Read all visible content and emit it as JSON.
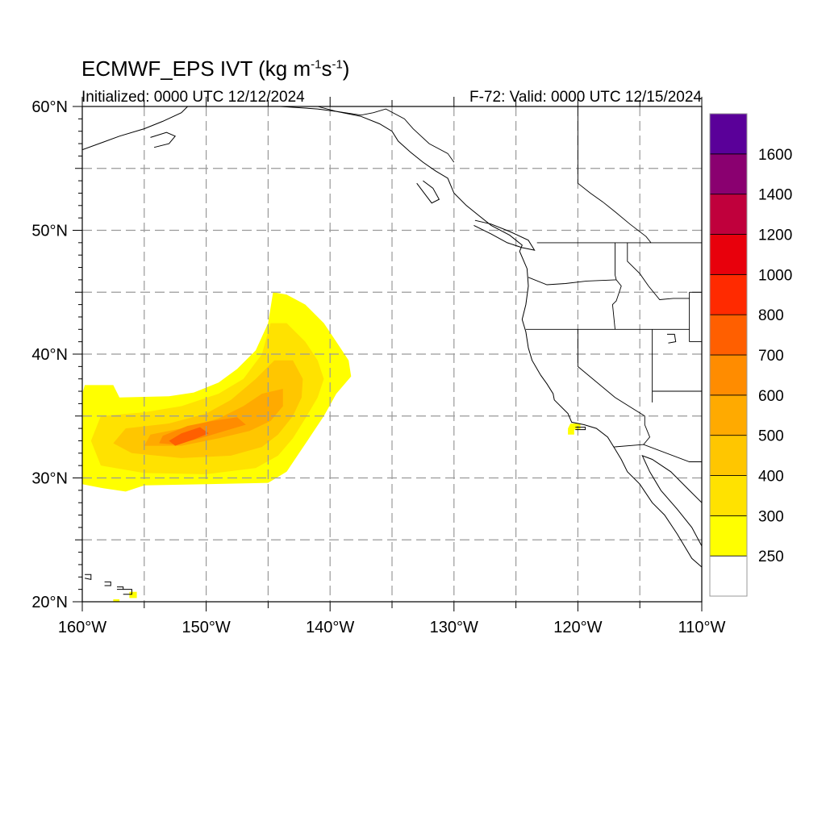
{
  "header": {
    "title_main": "ECMWF_EPS IVT (kg m",
    "title_exp1": "-1",
    "title_mid": "s",
    "title_exp2": "-1",
    "title_end": ")",
    "initialized": "Initialized: 0000 UTC 12/12/2024",
    "valid": "F-72: Valid: 0000 UTC 12/15/2024"
  },
  "map": {
    "lon_range": [
      -160,
      -110
    ],
    "lat_range": [
      20,
      60
    ],
    "lat_labels": [
      {
        "lat": 60,
        "text": "60°N"
      },
      {
        "lat": 50,
        "text": "50°N"
      },
      {
        "lat": 40,
        "text": "40°N"
      },
      {
        "lat": 30,
        "text": "30°N"
      },
      {
        "lat": 20,
        "text": "20°N"
      }
    ],
    "lon_labels": [
      {
        "lon": -160,
        "text": "160°W"
      },
      {
        "lon": -150,
        "text": "150°W"
      },
      {
        "lon": -140,
        "text": "140°W"
      },
      {
        "lon": -130,
        "text": "130°W"
      },
      {
        "lon": -120,
        "text": "120°W"
      },
      {
        "lon": -110,
        "text": "110°W"
      }
    ],
    "grid_lons": [
      -155,
      -150,
      -145,
      -140,
      -135,
      -130,
      -125,
      -120,
      -115
    ],
    "grid_lats": [
      25,
      30,
      35,
      40,
      45,
      50,
      55
    ]
  },
  "colorbar": {
    "colors": [
      "#ffffff",
      "#ffff00",
      "#ffe200",
      "#ffc600",
      "#ffaa00",
      "#ff8c00",
      "#ff5f00",
      "#ff2a00",
      "#e8000c",
      "#c0003c",
      "#8a0070",
      "#5a0099"
    ],
    "labels": [
      "250",
      "300",
      "400",
      "500",
      "600",
      "700",
      "800",
      "1000",
      "1200",
      "1400",
      "1600"
    ]
  },
  "ivt_bands": [
    {
      "level": 1,
      "color": "#ffff00",
      "points": [
        [
          -159.8,
          37.5
        ],
        [
          -157.5,
          37.5
        ],
        [
          -157,
          36.5
        ],
        [
          -153,
          36.6
        ],
        [
          -151,
          36.9
        ],
        [
          -149,
          37.7
        ],
        [
          -147.5,
          38.8
        ],
        [
          -146,
          40.3
        ],
        [
          -145,
          42.5
        ],
        [
          -144.6,
          45.0
        ],
        [
          -143.5,
          44.8
        ],
        [
          -142,
          44.0
        ],
        [
          -140.5,
          42.5
        ],
        [
          -139.5,
          41.0
        ],
        [
          -138.5,
          39.5
        ],
        [
          -138.3,
          38.2
        ],
        [
          -139.5,
          36.8
        ],
        [
          -140.5,
          35.0
        ],
        [
          -141.5,
          33.5
        ],
        [
          -142.5,
          32.0
        ],
        [
          -143.5,
          30.5
        ],
        [
          -145.0,
          29.6
        ],
        [
          -150,
          29.5
        ],
        [
          -155,
          29.4
        ],
        [
          -156.5,
          28.9
        ],
        [
          -158.5,
          29.2
        ],
        [
          -160,
          29.5
        ],
        [
          -160,
          33.0
        ],
        [
          -160,
          36.8
        ]
      ]
    },
    {
      "level": 2,
      "color": "#ffe200",
      "points": [
        [
          -158.5,
          35.0
        ],
        [
          -155,
          35.3
        ],
        [
          -152,
          35.8
        ],
        [
          -149,
          36.8
        ],
        [
          -147,
          38.0
        ],
        [
          -145.5,
          40.0
        ],
        [
          -144.8,
          42.5
        ],
        [
          -143.5,
          42.5
        ],
        [
          -142.0,
          41.0
        ],
        [
          -141.0,
          39.5
        ],
        [
          -140.5,
          38.0
        ],
        [
          -141.0,
          36.5
        ],
        [
          -142.0,
          34.8
        ],
        [
          -143.0,
          33.2
        ],
        [
          -144.2,
          31.8
        ],
        [
          -146,
          30.8
        ],
        [
          -150,
          30.3
        ],
        [
          -155,
          30.4
        ],
        [
          -158.5,
          31.0
        ],
        [
          -159.3,
          33.0
        ]
      ]
    },
    {
      "level": 3,
      "color": "#ffc600",
      "points": [
        [
          -156.5,
          34.0
        ],
        [
          -153,
          34.4
        ],
        [
          -150,
          35.2
        ],
        [
          -148,
          36.3
        ],
        [
          -146,
          38.0
        ],
        [
          -144.5,
          39.5
        ],
        [
          -143.0,
          39.5
        ],
        [
          -142.2,
          38.0
        ],
        [
          -142.3,
          36.5
        ],
        [
          -143.0,
          35.0
        ],
        [
          -144.2,
          33.5
        ],
        [
          -145.5,
          32.5
        ],
        [
          -148,
          31.8
        ],
        [
          -152,
          31.6
        ],
        [
          -156,
          32.0
        ],
        [
          -157.5,
          32.8
        ]
      ]
    },
    {
      "level": 4,
      "color": "#ffaa00",
      "points": [
        [
          -154.5,
          33.5
        ],
        [
          -151.5,
          34.1
        ],
        [
          -149,
          34.8
        ],
        [
          -147,
          35.8
        ],
        [
          -145.5,
          36.8
        ],
        [
          -143.8,
          37.2
        ],
        [
          -143.8,
          35.8
        ],
        [
          -144.8,
          34.6
        ],
        [
          -146.5,
          33.8
        ],
        [
          -149,
          33.2
        ],
        [
          -152,
          32.6
        ],
        [
          -155,
          32.6
        ]
      ]
    },
    {
      "level": 5,
      "color": "#ff8c00",
      "points": [
        [
          -153.5,
          33.4
        ],
        [
          -151.5,
          34.2
        ],
        [
          -149.5,
          34.6
        ],
        [
          -147.5,
          34.9
        ],
        [
          -146.8,
          34.3
        ],
        [
          -148.5,
          33.8
        ],
        [
          -150.5,
          33.2
        ],
        [
          -152.5,
          32.7
        ],
        [
          -153.8,
          32.8
        ]
      ]
    },
    {
      "level": 6,
      "color": "#ff5f00",
      "points": [
        [
          -153.0,
          33.0
        ],
        [
          -152.0,
          33.6
        ],
        [
          -150.5,
          34.1
        ],
        [
          -149.8,
          33.6
        ],
        [
          -151.0,
          33.1
        ],
        [
          -152.5,
          32.6
        ]
      ]
    },
    {
      "level": 1,
      "color": "#ffff00",
      "points": [
        [
          -120.6,
          34.4
        ],
        [
          -119.8,
          34.4
        ],
        [
          -119.8,
          33.9
        ],
        [
          -120.3,
          33.9
        ],
        [
          -120.3,
          33.5
        ],
        [
          -120.8,
          33.5
        ],
        [
          -120.8,
          34.0
        ]
      ]
    },
    {
      "level": 1,
      "color": "#ffff00",
      "points": [
        [
          -156.2,
          20.8
        ],
        [
          -155.6,
          20.8
        ],
        [
          -155.6,
          20.3
        ],
        [
          -156.2,
          20.3
        ]
      ]
    },
    {
      "level": 1,
      "color": "#ffff00",
      "points": [
        [
          -157.5,
          20.2
        ],
        [
          -157.0,
          20.2
        ],
        [
          -157.0,
          19.9
        ],
        [
          -157.5,
          19.9
        ]
      ]
    }
  ],
  "coastlines": [
    {
      "name": "north-america-west-coast",
      "points": [
        [
          -137.5,
          59.2
        ],
        [
          -136.0,
          58.6
        ],
        [
          -135.0,
          58.0
        ],
        [
          -134.5,
          57.2
        ],
        [
          -133.5,
          56.3
        ],
        [
          -132.5,
          55.5
        ],
        [
          -131.5,
          54.8
        ],
        [
          -130.5,
          54.2
        ],
        [
          -130.0,
          53.0
        ],
        [
          -129.0,
          52.0
        ],
        [
          -128.0,
          51.2
        ],
        [
          -127.0,
          50.4
        ],
        [
          -125.5,
          49.6
        ],
        [
          -124.5,
          48.8
        ],
        [
          -124.7,
          48.3
        ],
        [
          -124.1,
          46.9
        ],
        [
          -124.0,
          45.5
        ],
        [
          -124.2,
          44.0
        ],
        [
          -124.5,
          42.8
        ],
        [
          -124.2,
          41.8
        ],
        [
          -124.0,
          40.5
        ],
        [
          -123.7,
          39.5
        ],
        [
          -123.0,
          38.3
        ],
        [
          -122.5,
          37.6
        ],
        [
          -122.0,
          36.8
        ],
        [
          -121.9,
          36.3
        ],
        [
          -120.8,
          35.2
        ],
        [
          -120.5,
          34.5
        ],
        [
          -119.5,
          34.3
        ],
        [
          -118.5,
          34.0
        ],
        [
          -117.6,
          33.3
        ],
        [
          -117.1,
          32.5
        ],
        [
          -116.5,
          31.5
        ],
        [
          -116.0,
          30.5
        ],
        [
          -115.0,
          29.5
        ],
        [
          -114.0,
          28.0
        ],
        [
          -113.0,
          27.0
        ],
        [
          -112.0,
          25.5
        ],
        [
          -110.8,
          23.5
        ],
        [
          -110.0,
          22.8
        ]
      ]
    },
    {
      "name": "gulf-of-california",
      "points": [
        [
          -110.0,
          28.0
        ],
        [
          -111.0,
          29.0
        ],
        [
          -112.5,
          30.5
        ],
        [
          -114.0,
          31.5
        ],
        [
          -114.8,
          31.8
        ],
        [
          -114.2,
          30.5
        ],
        [
          -113.3,
          29.0
        ],
        [
          -112.0,
          27.5
        ],
        [
          -110.8,
          26.0
        ],
        [
          -110.0,
          24.5
        ]
      ]
    },
    {
      "name": "alaska-gulf",
      "points": [
        [
          -149.0,
          60.0
        ],
        [
          -146.5,
          60.5
        ],
        [
          -144.0,
          60.0
        ],
        [
          -141.0,
          59.8
        ],
        [
          -139.5,
          59.6
        ],
        [
          -137.5,
          59.2
        ]
      ]
    },
    {
      "name": "kenai",
      "points": [
        [
          -160,
          56.5
        ],
        [
          -157,
          57.6
        ],
        [
          -155,
          58.2
        ],
        [
          -153.5,
          58.8
        ],
        [
          -152,
          59.5
        ],
        [
          -151.5,
          60.0
        ]
      ]
    },
    {
      "name": "kodiak",
      "points": [
        [
          -154.5,
          57.5
        ],
        [
          -153.2,
          57.9
        ],
        [
          -152.5,
          57.6
        ],
        [
          -153.0,
          57.0
        ],
        [
          -154.2,
          56.7
        ]
      ]
    },
    {
      "name": "haida-gwaii",
      "points": [
        [
          -132.5,
          54.0
        ],
        [
          -131.7,
          53.4
        ],
        [
          -131.2,
          52.5
        ],
        [
          -131.8,
          52.2
        ],
        [
          -132.4,
          53.0
        ],
        [
          -133.0,
          53.8
        ]
      ]
    },
    {
      "name": "vancouver-island",
      "points": [
        [
          -128.3,
          50.8
        ],
        [
          -127.0,
          50.5
        ],
        [
          -125.5,
          49.9
        ],
        [
          -124.0,
          49.2
        ],
        [
          -123.5,
          48.4
        ],
        [
          -124.5,
          48.6
        ],
        [
          -125.7,
          49.0
        ],
        [
          -127.0,
          49.7
        ],
        [
          -128.4,
          50.4
        ]
      ]
    },
    {
      "name": "hawaii-1",
      "points": [
        [
          -159.8,
          22.2
        ],
        [
          -159.3,
          22.2
        ],
        [
          -159.3,
          21.8
        ],
        [
          -159.8,
          21.9
        ]
      ]
    },
    {
      "name": "hawaii-2",
      "points": [
        [
          -158.2,
          21.6
        ],
        [
          -157.7,
          21.6
        ],
        [
          -157.7,
          21.3
        ],
        [
          -158.2,
          21.3
        ]
      ]
    },
    {
      "name": "hawaii-3",
      "points": [
        [
          -157.2,
          21.2
        ],
        [
          -156.7,
          21.2
        ],
        [
          -156.7,
          21.0
        ],
        [
          -157.2,
          21.0
        ]
      ]
    },
    {
      "name": "hawaii-4",
      "points": [
        [
          -156.7,
          21.0
        ],
        [
          -156.0,
          21.0
        ],
        [
          -156.0,
          20.6
        ],
        [
          -156.7,
          20.6
        ]
      ]
    },
    {
      "name": "great-salt-lake",
      "points": [
        [
          -112.8,
          41.6
        ],
        [
          -112.2,
          41.6
        ],
        [
          -112.1,
          41.0
        ],
        [
          -112.7,
          40.9
        ]
      ]
    },
    {
      "name": "channel-islands",
      "points": [
        [
          -120.2,
          34.1
        ],
        [
          -119.4,
          34.1
        ],
        [
          -119.4,
          33.9
        ],
        [
          -120.2,
          33.9
        ]
      ]
    }
  ],
  "borders": [
    {
      "name": "us-canada",
      "points": [
        [
          -123.3,
          49.0
        ],
        [
          -110,
          49.0
        ]
      ]
    },
    {
      "name": "alaska-canada",
      "points": [
        [
          -141,
          60
        ],
        [
          -139.5,
          59.6
        ],
        [
          -137.5,
          59.3
        ],
        [
          -136.5,
          59.5
        ],
        [
          -135.5,
          59.8
        ],
        [
          -134.0,
          59.0
        ],
        [
          -133.3,
          58.2
        ],
        [
          -132.0,
          57.0
        ],
        [
          -130.5,
          56.2
        ],
        [
          -130.0,
          55.5
        ]
      ]
    },
    {
      "name": "bc-alberta",
      "points": [
        [
          -120,
          60
        ],
        [
          -120,
          53.8
        ],
        [
          -119,
          53.0
        ],
        [
          -118,
          52.3
        ],
        [
          -117,
          51.5
        ],
        [
          -115.8,
          50.5
        ],
        [
          -114.5,
          49.5
        ],
        [
          -114.1,
          49.0
        ]
      ]
    },
    {
      "name": "wa-or",
      "points": [
        [
          -124.0,
          46.2
        ],
        [
          -122.5,
          45.6
        ],
        [
          -121.0,
          45.7
        ],
        [
          -119.3,
          45.9
        ],
        [
          -116.9,
          46.0
        ]
      ]
    },
    {
      "name": "wa-id",
      "points": [
        [
          -117.0,
          49.0
        ],
        [
          -117.0,
          46.4
        ],
        [
          -116.9,
          46.0
        ]
      ]
    },
    {
      "name": "or-id",
      "points": [
        [
          -116.9,
          46.0
        ],
        [
          -116.5,
          45.5
        ],
        [
          -116.9,
          44.3
        ],
        [
          -117.2,
          44.0
        ],
        [
          -117.0,
          42.0
        ]
      ]
    },
    {
      "name": "id-mt",
      "points": [
        [
          -116.0,
          49.0
        ],
        [
          -116.0,
          47.5
        ],
        [
          -115.0,
          46.5
        ],
        [
          -114.3,
          45.5
        ],
        [
          -113.4,
          44.4
        ],
        [
          -112.3,
          44.5
        ],
        [
          -111.0,
          44.5
        ]
      ]
    },
    {
      "name": "mt-wy",
      "points": [
        [
          -111.0,
          45.0
        ],
        [
          -110,
          45.0
        ]
      ]
    },
    {
      "name": "id-wy",
      "points": [
        [
          -111.0,
          45.0
        ],
        [
          -111.0,
          41.0
        ]
      ]
    },
    {
      "name": "or-ca-nv-id-ut",
      "points": [
        [
          -124.2,
          42.0
        ],
        [
          -111.0,
          42.0
        ]
      ]
    },
    {
      "name": "ut-wy",
      "points": [
        [
          -111.0,
          41.0
        ],
        [
          -110,
          41.0
        ]
      ]
    },
    {
      "name": "ut-az",
      "points": [
        [
          -114.0,
          37.0
        ],
        [
          -110,
          37.0
        ]
      ]
    },
    {
      "name": "nv-ut",
      "points": [
        [
          -114.0,
          42.0
        ],
        [
          -114.0,
          36.1
        ]
      ]
    },
    {
      "name": "ca-nv",
      "points": [
        [
          -120.0,
          42.0
        ],
        [
          -120.0,
          39.0
        ],
        [
          -117.0,
          36.5
        ],
        [
          -114.6,
          35.0
        ],
        [
          -114.6,
          34.3
        ]
      ]
    },
    {
      "name": "ca-az",
      "points": [
        [
          -114.6,
          34.3
        ],
        [
          -114.2,
          33.3
        ],
        [
          -114.7,
          32.7
        ]
      ]
    },
    {
      "name": "us-mexico",
      "points": [
        [
          -117.1,
          32.5
        ],
        [
          -114.7,
          32.7
        ],
        [
          -111.0,
          31.3
        ],
        [
          -110,
          31.3
        ]
      ]
    }
  ]
}
